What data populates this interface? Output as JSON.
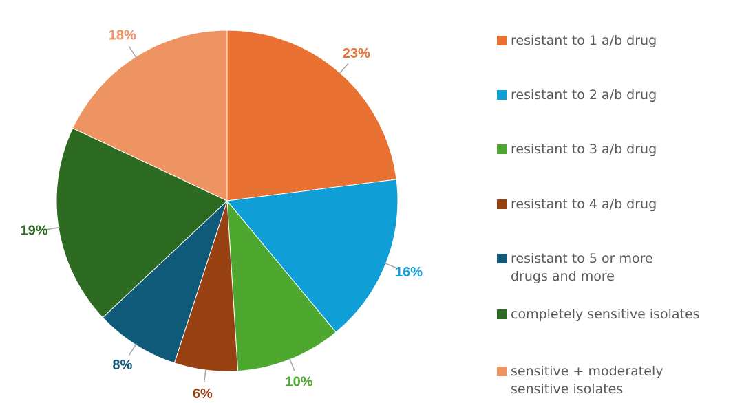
{
  "chart_data": {
    "type": "pie",
    "categories": [
      "resistant to 1 a/b drug",
      "resistant to 2 a/b drug",
      "resistant to 3 a/b drug",
      "resistant to 4 a/b drug",
      "resistant to 5 or more drugs and more",
      "completely sensitive isolates",
      "sensitive + moderately sensitive isolates"
    ],
    "values": [
      23,
      16,
      10,
      6,
      8,
      19,
      18
    ],
    "value_labels": [
      "23%",
      "16%",
      "10%",
      "6%",
      "8%",
      "19%",
      "18%"
    ],
    "colors": [
      "#E97132",
      "#0F9ED5",
      "#4EA72E",
      "#974012",
      "#0E5A78",
      "#2E6B22",
      "#EE9462"
    ],
    "legend": "right"
  }
}
